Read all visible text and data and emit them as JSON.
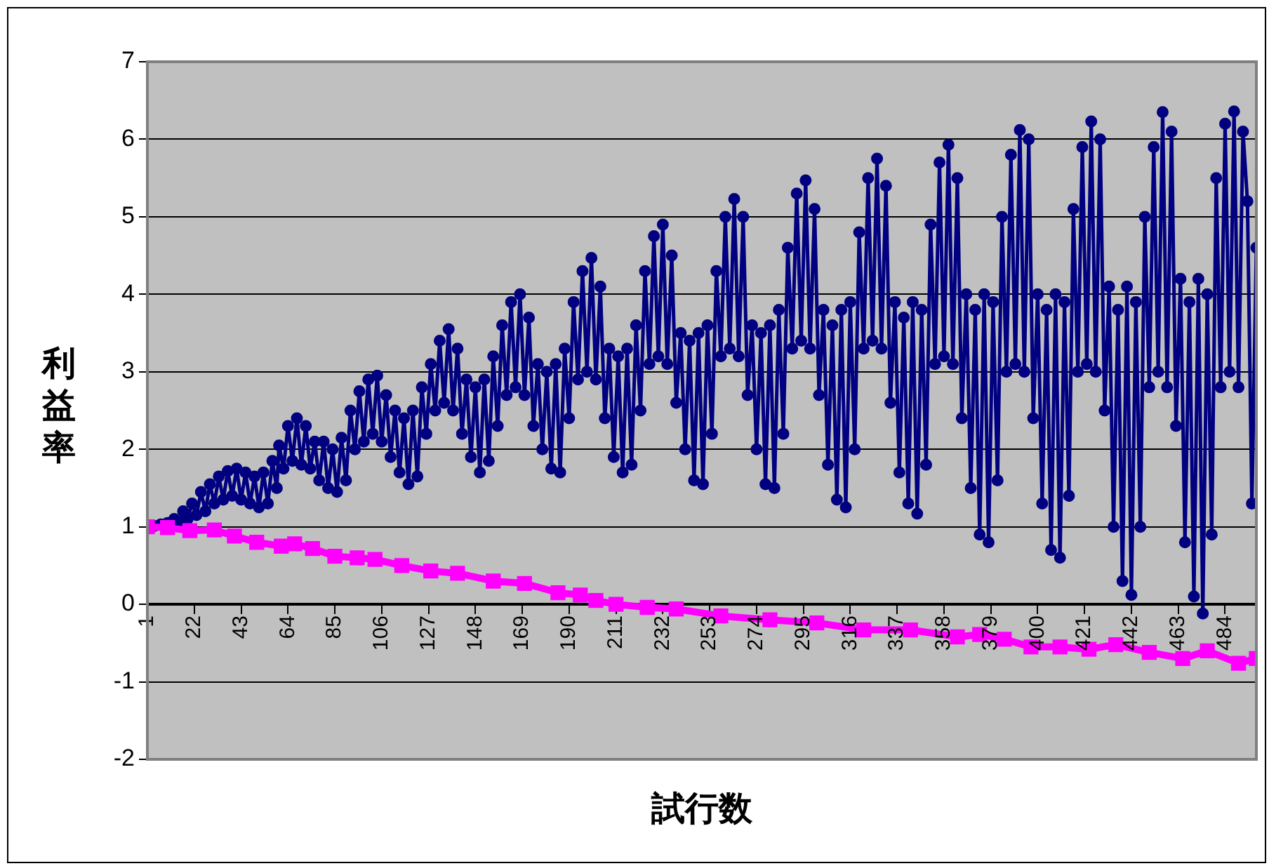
{
  "chart_data": {
    "type": "line",
    "xlabel": "試行数",
    "ylabel": "利益率",
    "xlim": [
      1,
      498
    ],
    "xticks": [
      1,
      22,
      43,
      64,
      85,
      106,
      127,
      148,
      169,
      190,
      211,
      232,
      253,
      274,
      295,
      316,
      337,
      358,
      379,
      400,
      421,
      442,
      463,
      484
    ],
    "ylim": [
      -2,
      7
    ],
    "yticks": [
      -2,
      -1,
      0,
      1,
      2,
      3,
      4,
      5,
      6,
      7
    ],
    "grid": "y",
    "legend": false,
    "line_style": "solid",
    "series": [
      {
        "color": "#000080",
        "marker": "circle",
        "x": [
          1,
          4,
          7,
          10,
          13,
          15,
          17,
          19,
          21,
          23,
          25,
          27,
          29,
          31,
          33,
          35,
          37,
          39,
          41,
          43,
          45,
          47,
          49,
          51,
          53,
          55,
          57,
          59,
          60,
          62,
          64,
          66,
          68,
          70,
          72,
          74,
          76,
          78,
          80,
          82,
          84,
          86,
          88,
          90,
          92,
          94,
          96,
          98,
          100,
          102,
          104,
          106,
          108,
          110,
          112,
          114,
          116,
          118,
          120,
          122,
          124,
          126,
          128,
          130,
          132,
          134,
          136,
          138,
          140,
          142,
          144,
          146,
          148,
          150,
          152,
          154,
          156,
          158,
          160,
          162,
          164,
          166,
          168,
          170,
          172,
          174,
          176,
          178,
          180,
          182,
          184,
          186,
          188,
          190,
          192,
          194,
          196,
          198,
          200,
          202,
          204,
          206,
          208,
          210,
          212,
          214,
          216,
          218,
          220,
          222,
          224,
          226,
          228,
          230,
          232,
          234,
          236,
          238,
          240,
          242,
          244,
          246,
          248,
          250,
          252,
          254,
          256,
          258,
          260,
          262,
          264,
          266,
          268,
          270,
          272,
          274,
          276,
          278,
          280,
          282,
          284,
          286,
          288,
          290,
          292,
          294,
          296,
          298,
          300,
          302,
          304,
          306,
          308,
          310,
          312,
          314,
          316,
          318,
          320,
          322,
          324,
          326,
          328,
          330,
          332,
          334,
          336,
          338,
          340,
          342,
          344,
          346,
          348,
          350,
          352,
          354,
          356,
          358,
          360,
          362,
          364,
          366,
          368,
          370,
          372,
          374,
          376,
          378,
          380,
          382,
          384,
          386,
          388,
          390,
          392,
          394,
          396,
          398,
          400,
          402,
          404,
          406,
          408,
          410,
          412,
          414,
          416,
          418,
          420,
          422,
          424,
          426,
          428,
          430,
          432,
          434,
          436,
          438,
          440,
          442,
          444,
          446,
          448,
          450,
          452,
          454,
          456,
          458,
          460,
          462,
          464,
          466,
          468,
          470,
          472,
          474,
          476,
          478,
          480,
          482,
          484,
          486,
          488,
          490,
          492,
          494,
          496,
          498
        ],
        "values": [
          1.0,
          1.01,
          1.03,
          1.05,
          1.1,
          1.05,
          1.2,
          1.1,
          1.3,
          1.15,
          1.45,
          1.2,
          1.55,
          1.3,
          1.65,
          1.35,
          1.72,
          1.4,
          1.75,
          1.35,
          1.7,
          1.3,
          1.65,
          1.25,
          1.7,
          1.3,
          1.85,
          1.5,
          2.05,
          1.75,
          2.3,
          1.85,
          2.4,
          1.8,
          2.3,
          1.75,
          2.1,
          1.6,
          2.1,
          1.5,
          2.0,
          1.45,
          2.15,
          1.6,
          2.5,
          2.0,
          2.75,
          2.1,
          2.9,
          2.2,
          2.95,
          2.1,
          2.7,
          1.9,
          2.5,
          1.7,
          2.4,
          1.55,
          2.5,
          1.65,
          2.8,
          2.2,
          3.1,
          2.5,
          3.4,
          2.6,
          3.55,
          2.5,
          3.3,
          2.2,
          2.9,
          1.9,
          2.8,
          1.7,
          2.9,
          1.85,
          3.2,
          2.3,
          3.6,
          2.7,
          3.9,
          2.8,
          4.0,
          2.7,
          3.7,
          2.3,
          3.1,
          2.0,
          3.0,
          1.75,
          3.1,
          1.7,
          3.3,
          2.4,
          3.9,
          2.9,
          4.3,
          3.0,
          4.47,
          2.9,
          4.1,
          2.4,
          3.3,
          1.9,
          3.2,
          1.7,
          3.3,
          1.8,
          3.6,
          2.5,
          4.3,
          3.1,
          4.75,
          3.2,
          4.9,
          3.1,
          4.5,
          2.6,
          3.5,
          2.0,
          3.4,
          1.6,
          3.5,
          1.55,
          3.6,
          2.2,
          4.3,
          3.2,
          5.0,
          3.3,
          5.23,
          3.2,
          5.0,
          2.7,
          3.6,
          2.0,
          3.5,
          1.55,
          3.6,
          1.5,
          3.8,
          2.2,
          4.6,
          3.3,
          5.3,
          3.4,
          5.47,
          3.3,
          5.1,
          2.7,
          3.8,
          1.8,
          3.6,
          1.35,
          3.8,
          1.25,
          3.9,
          2.0,
          4.8,
          3.3,
          5.5,
          3.4,
          5.75,
          3.3,
          5.4,
          2.6,
          3.9,
          1.7,
          3.7,
          1.3,
          3.9,
          1.17,
          3.8,
          1.8,
          4.9,
          3.1,
          5.7,
          3.2,
          5.93,
          3.1,
          5.5,
          2.4,
          4.0,
          1.5,
          3.8,
          0.9,
          4.0,
          0.8,
          3.9,
          1.6,
          5.0,
          3.0,
          5.8,
          3.1,
          6.12,
          3.0,
          6.0,
          2.4,
          4.0,
          1.3,
          3.8,
          0.7,
          4.0,
          0.6,
          3.9,
          1.4,
          5.1,
          3.0,
          5.9,
          3.1,
          6.23,
          3.0,
          6.0,
          2.5,
          4.1,
          1.0,
          3.8,
          0.3,
          4.1,
          0.12,
          3.9,
          1.0,
          5.0,
          2.8,
          5.9,
          3.0,
          6.35,
          2.8,
          6.1,
          2.3,
          4.2,
          0.8,
          3.9,
          0.1,
          4.2,
          -0.12,
          4.0,
          0.9,
          5.5,
          2.8,
          6.2,
          3.0,
          6.36,
          2.8,
          6.1,
          5.2,
          1.3,
          4.6
        ]
      },
      {
        "color": "#ff00ff",
        "marker": "square",
        "x": [
          1,
          10,
          20,
          31,
          40,
          50,
          61,
          67,
          75,
          85,
          95,
          103,
          115,
          128,
          140,
          156,
          170,
          185,
          195,
          202,
          211,
          225,
          238,
          258,
          280,
          301,
          322,
          343,
          364,
          374,
          385,
          397,
          410,
          423,
          435,
          450,
          465,
          476,
          490,
          498
        ],
        "values": [
          1.0,
          0.99,
          0.95,
          0.96,
          0.88,
          0.8,
          0.75,
          0.78,
          0.72,
          0.62,
          0.6,
          0.58,
          0.5,
          0.43,
          0.4,
          0.3,
          0.27,
          0.15,
          0.12,
          0.05,
          0.0,
          -0.04,
          -0.06,
          -0.15,
          -0.2,
          -0.24,
          -0.33,
          -0.33,
          -0.42,
          -0.39,
          -0.45,
          -0.55,
          -0.55,
          -0.58,
          -0.52,
          -0.62,
          -0.7,
          -0.6,
          -0.76,
          -0.7
        ]
      }
    ]
  }
}
